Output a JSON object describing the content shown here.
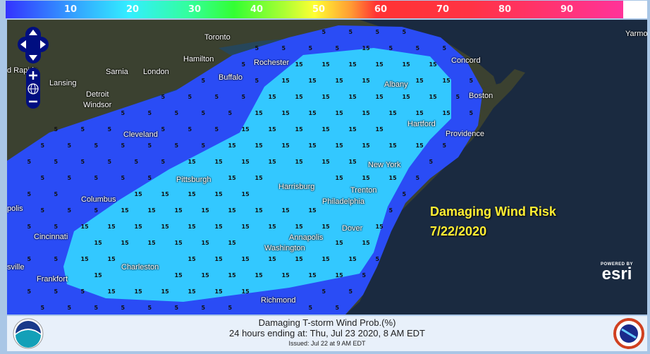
{
  "colorbar": {
    "ticks": [
      "10",
      "20",
      "30",
      "40",
      "50",
      "60",
      "70",
      "80",
      "90"
    ],
    "unit": "%"
  },
  "map": {
    "contour_labels": {
      "outer": "5",
      "inner": "15"
    },
    "colors": {
      "outer": "#2a4cf5",
      "inner": "#33c8ff",
      "land": "#3a3f30",
      "ocean": "#1a2a40"
    },
    "cities": [
      {
        "name": "Toronto"
      },
      {
        "name": "Hamilton"
      },
      {
        "name": "Rochester"
      },
      {
        "name": "Sarnia"
      },
      {
        "name": "London"
      },
      {
        "name": "Buffalo"
      },
      {
        "name": "d Rapids"
      },
      {
        "name": "Lansing"
      },
      {
        "name": "Detroit"
      },
      {
        "name": "Windsor"
      },
      {
        "name": "Concord"
      },
      {
        "name": "Albany"
      },
      {
        "name": "Boston"
      },
      {
        "name": "Hartford"
      },
      {
        "name": "Providence"
      },
      {
        "name": "Cleveland"
      },
      {
        "name": "Pittsburgh"
      },
      {
        "name": "Harrisburg"
      },
      {
        "name": "New York"
      },
      {
        "name": "Trenton"
      },
      {
        "name": "Philadelphia"
      },
      {
        "name": "Columbus"
      },
      {
        "name": "polis"
      },
      {
        "name": "Cincinnati"
      },
      {
        "name": "Annapolis"
      },
      {
        "name": "Washington"
      },
      {
        "name": "Dover"
      },
      {
        "name": "Charleston"
      },
      {
        "name": "Frankfort"
      },
      {
        "name": "sville"
      },
      {
        "name": "Richmond"
      },
      {
        "name": "Yarmo"
      }
    ],
    "overlay": {
      "title": "Damaging Wind Risk",
      "date": "7/22/2020"
    },
    "attribution": {
      "powered": "POWERED BY",
      "brand": "esri"
    }
  },
  "footer": {
    "line1": "Damaging T-storm Wind Prob.(%)",
    "line2": "24 hours ending at: Thu, Jul 23 2020,   8 AM EDT",
    "line3": "Issued: Jul 22 at 9 AM EDT",
    "left_logo": "NOAA",
    "right_logo": "NATIONAL WEATHER SERVICE"
  }
}
